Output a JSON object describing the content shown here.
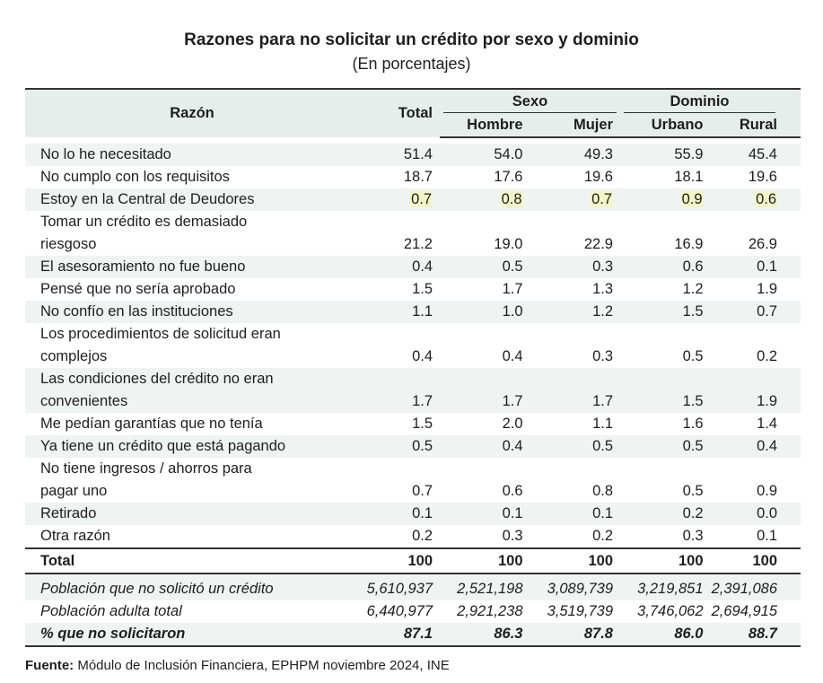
{
  "title": "Razones para no solicitar un crédito por sexo y dominio",
  "subtitle": "(En porcentajes)",
  "header": {
    "razon": "Razón",
    "total": "Total",
    "sexo": "Sexo",
    "dominio": "Dominio",
    "hombre": "Hombre",
    "mujer": "Mujer",
    "urbano": "Urbano",
    "rural": "Rural"
  },
  "rows": [
    {
      "label": [
        "No lo he necesitado"
      ],
      "values": [
        "51.4",
        "54.0",
        "49.3",
        "55.9",
        "45.4"
      ]
    },
    {
      "label": [
        "No cumplo con los requisitos"
      ],
      "values": [
        "18.7",
        "17.6",
        "19.6",
        "18.1",
        "19.6"
      ]
    },
    {
      "label": [
        "Estoy en la Central de Deudores"
      ],
      "values": [
        "0.7",
        "0.8",
        "0.7",
        "0.9",
        "0.6"
      ],
      "highlight": true
    },
    {
      "label": [
        "Tomar un crédito es demasiado",
        "riesgoso"
      ],
      "values": [
        "21.2",
        "19.0",
        "22.9",
        "16.9",
        "26.9"
      ]
    },
    {
      "label": [
        "El asesoramiento no fue bueno"
      ],
      "values": [
        "0.4",
        "0.5",
        "0.3",
        "0.6",
        "0.1"
      ]
    },
    {
      "label": [
        "Pensé que no sería aprobado"
      ],
      "values": [
        "1.5",
        "1.7",
        "1.3",
        "1.2",
        "1.9"
      ]
    },
    {
      "label": [
        "No confío en las instituciones"
      ],
      "values": [
        "1.1",
        "1.0",
        "1.2",
        "1.5",
        "0.7"
      ]
    },
    {
      "label": [
        "Los procedimientos de solicitud eran",
        "complejos"
      ],
      "values": [
        "0.4",
        "0.4",
        "0.3",
        "0.5",
        "0.2"
      ]
    },
    {
      "label": [
        "Las condiciones del crédito no eran",
        "convenientes"
      ],
      "values": [
        "1.7",
        "1.7",
        "1.7",
        "1.5",
        "1.9"
      ]
    },
    {
      "label": [
        "Me pedían garantías que no tenía"
      ],
      "values": [
        "1.5",
        "2.0",
        "1.1",
        "1.6",
        "1.4"
      ]
    },
    {
      "label": [
        "Ya tiene un crédito que está pagando"
      ],
      "values": [
        "0.5",
        "0.4",
        "0.5",
        "0.5",
        "0.4"
      ]
    },
    {
      "label": [
        "No tiene ingresos / ahorros para",
        "pagar uno"
      ],
      "values": [
        "0.7",
        "0.6",
        "0.8",
        "0.5",
        "0.9"
      ]
    },
    {
      "label": [
        "Retirado"
      ],
      "values": [
        "0.1",
        "0.1",
        "0.1",
        "0.2",
        "0.0"
      ]
    },
    {
      "label": [
        "Otra razón"
      ],
      "values": [
        "0.2",
        "0.3",
        "0.2",
        "0.3",
        "0.1"
      ]
    }
  ],
  "total_row": {
    "label": "Total",
    "values": [
      "100",
      "100",
      "100",
      "100",
      "100"
    ]
  },
  "footer_rows": [
    {
      "label": "Población que no solicitó un crédito",
      "values": [
        "5,610,937",
        "2,521,198",
        "3,089,739",
        "3,219,851",
        "2,391,086"
      ]
    },
    {
      "label": "Población adulta total",
      "values": [
        "6,440,977",
        "2,921,238",
        "3,519,739",
        "3,746,062",
        "2,694,915"
      ]
    },
    {
      "label": "% que no solicitaron",
      "values": [
        "87.1",
        "86.3",
        "87.8",
        "86.0",
        "88.7"
      ]
    }
  ],
  "source": {
    "label": "Fuente:",
    "text": " Módulo de Inclusión Financiera, EPHPM noviembre 2024, INE"
  },
  "colors": {
    "header_bg": "#e6eeeb",
    "row_shade": "#eff3f2",
    "highlight": "#f3f5c6"
  }
}
